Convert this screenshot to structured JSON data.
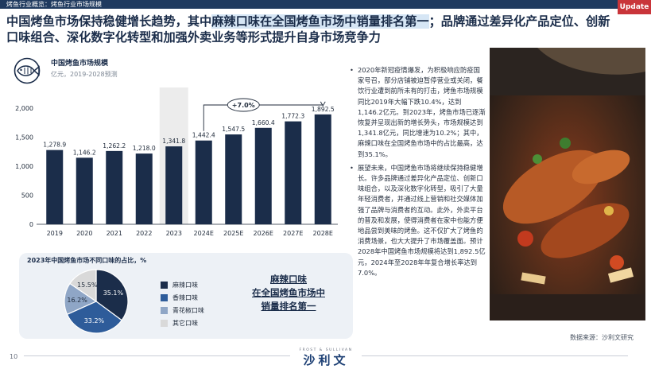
{
  "header": {
    "breadcrumb": "烤鱼行业概览：烤鱼行业市场规模",
    "badge": "Update"
  },
  "headline": {
    "before": "中国烤鱼市场保持稳健增长趋势，其中",
    "highlight": "麻辣口味在全国烤鱼市场中销量排名第一",
    "after": "；品牌通过差异化产品定位、创新口味组合、深化数字化转型和加强外卖业务等形式提升自身市场竞争力"
  },
  "market_chart": {
    "title": "中国烤鱼市场规模",
    "subtitle": "亿元，2019-2028预测",
    "cagr_label": "+7.0%"
  },
  "pie": {
    "title": "2023年中国烤鱼市场不同口味的占比，%",
    "legend": [
      {
        "label": "麻辣口味",
        "color": "#1b2d4a"
      },
      {
        "label": "香辣口味",
        "color": "#2e5c9a"
      },
      {
        "label": "青花椒口味",
        "color": "#8fa6c6"
      },
      {
        "label": "其它口味",
        "color": "#d9d9d9"
      }
    ]
  },
  "callout": {
    "line1": "麻辣口味",
    "line2": "在全国烤鱼市场中",
    "line3": "销量排名第一"
  },
  "bullets": [
    "2020年新冠疫情爆发，为积极响应防疫国家号召，部分店铺被迫暂停营业或关闭，餐饮行业遭到前所未有的打击，烤鱼市场规模同比2019年大幅下跌10.4%，达到1,146.2亿元。到2023年，烤鱼市场已逐渐恢复并呈现出新的增长势头，市场规模达到1,341.8亿元，同比增速为10.2%；其中，麻辣口味在全国烤鱼市场中的占比最高，达到35.1%。",
    "展望未来，中国烤鱼市场将继续保持稳健增长。许多品牌通过差异化产品定位、创新口味组合，以及深化数字化转型，吸引了大量年轻消费者，并通过线上营销和社交媒体加强了品牌与消费者的互动。此外，外卖平台的普及和发展，使得消费者在家中也能方便地品尝到美味的烤鱼。这不仅扩大了烤鱼的消费场景，也大大提升了市场覆盖面。预计2028年中国烤鱼市场规模将达到1,892.5亿元，2024年至2028年年复合增长率达到7.0%。"
  ],
  "footer": {
    "source": "数据来源：沙利文研究",
    "page_number": "10",
    "brand_small": "FROST & SULLIVAN",
    "brand_main": "沙利文"
  },
  "chart_data": [
    {
      "type": "bar",
      "categories": [
        "2019",
        "2020",
        "2021",
        "2022",
        "2023",
        "2024E",
        "2025E",
        "2026E",
        "2027E",
        "2028E"
      ],
      "values": [
        1278.9,
        1146.2,
        1262.2,
        1218.0,
        1341.8,
        1442.4,
        1547.5,
        1660.4,
        1772.3,
        1892.5
      ],
      "value_labels": [
        "1,278.9",
        "1,146.2",
        "1,262.2",
        "1,218.0",
        "1,341.8",
        "1,442.4",
        "1,547.5",
        "1,660.4",
        "1,772.3",
        "1,892.5"
      ],
      "yticks": [
        "0",
        "500",
        "1,000",
        "1,500",
        "2,000"
      ],
      "ylim": [
        0,
        2000
      ],
      "highlight_category": "2023",
      "annotation": "+7.0%",
      "color": "#1b2d4a",
      "grid": false
    },
    {
      "type": "pie",
      "categories": [
        "麻辣口味",
        "香辣口味",
        "青花椒口味",
        "其它口味"
      ],
      "values": [
        35.1,
        33.2,
        16.2,
        15.5
      ],
      "value_labels": [
        "35.1%",
        "33.2%",
        "16.2%",
        "15.5%"
      ],
      "colors": [
        "#1b2d4a",
        "#2e5c9a",
        "#8fa6c6",
        "#d9d9d9"
      ]
    }
  ]
}
